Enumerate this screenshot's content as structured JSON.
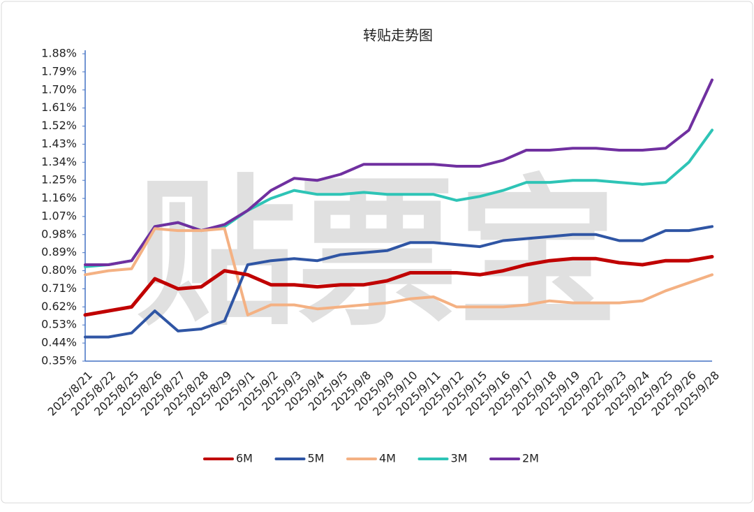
{
  "chart_data": {
    "type": "line",
    "title": "转贴走势图",
    "watermark": "贴票宝",
    "categories": [
      "2025/8/21",
      "2025/8/22",
      "2025/8/25",
      "2025/8/26",
      "2025/8/27",
      "2025/8/28",
      "2025/8/29",
      "2025/9/1",
      "2025/9/2",
      "2025/9/3",
      "2025/9/4",
      "2025/9/5",
      "2025/9/8",
      "2025/9/9",
      "2025/9/10",
      "2025/9/11",
      "2025/9/12",
      "2025/9/15",
      "2025/9/16",
      "2025/9/17",
      "2025/9/18",
      "2025/9/19",
      "2025/9/22",
      "2025/9/23",
      "2025/9/24",
      "2025/9/25",
      "2025/9/26",
      "2025/9/28"
    ],
    "series": [
      {
        "name": "6M",
        "color": "#c00000",
        "values": [
          0.58,
          0.6,
          0.62,
          0.76,
          0.71,
          0.72,
          0.8,
          0.78,
          0.73,
          0.73,
          0.72,
          0.73,
          0.73,
          0.75,
          0.79,
          0.79,
          0.79,
          0.78,
          0.8,
          0.83,
          0.85,
          0.86,
          0.86,
          0.84,
          0.83,
          0.85,
          0.85,
          0.87
        ]
      },
      {
        "name": "5M",
        "color": "#2f55a4",
        "values": [
          0.47,
          0.47,
          0.49,
          0.6,
          0.5,
          0.51,
          0.55,
          0.83,
          0.85,
          0.86,
          0.85,
          0.88,
          0.89,
          0.9,
          0.94,
          0.94,
          0.93,
          0.92,
          0.95,
          0.96,
          0.97,
          0.98,
          0.98,
          0.95,
          0.95,
          1.0,
          1.0,
          1.02
        ]
      },
      {
        "name": "4M",
        "color": "#f4b183",
        "values": [
          0.78,
          0.8,
          0.81,
          1.01,
          1.0,
          1.0,
          1.01,
          0.58,
          0.63,
          0.63,
          0.61,
          0.62,
          0.63,
          0.64,
          0.66,
          0.67,
          0.62,
          0.62,
          0.62,
          0.63,
          0.65,
          0.64,
          0.64,
          0.64,
          0.65,
          0.7,
          0.74,
          0.78
        ]
      },
      {
        "name": "3M",
        "color": "#2ec4b6",
        "values": [
          0.82,
          0.83,
          0.85,
          1.02,
          1.04,
          1.0,
          1.02,
          1.1,
          1.16,
          1.2,
          1.18,
          1.18,
          1.19,
          1.18,
          1.18,
          1.18,
          1.15,
          1.17,
          1.2,
          1.24,
          1.24,
          1.25,
          1.25,
          1.24,
          1.23,
          1.24,
          1.34,
          1.5
        ]
      },
      {
        "name": "2M",
        "color": "#7030a0",
        "values": [
          0.83,
          0.83,
          0.85,
          1.02,
          1.04,
          1.0,
          1.03,
          1.1,
          1.2,
          1.26,
          1.25,
          1.28,
          1.33,
          1.33,
          1.33,
          1.33,
          1.32,
          1.32,
          1.35,
          1.4,
          1.4,
          1.41,
          1.41,
          1.4,
          1.4,
          1.41,
          1.5,
          1.75
        ]
      }
    ],
    "ylim": [
      0.35,
      1.88
    ],
    "yticks": [
      {
        "value": 0.35,
        "label": "0.35%"
      },
      {
        "value": 0.44,
        "label": "0.44%"
      },
      {
        "value": 0.53,
        "label": "0.53%"
      },
      {
        "value": 0.62,
        "label": "0.62%"
      },
      {
        "value": 0.71,
        "label": "0.71%"
      },
      {
        "value": 0.8,
        "label": "0.80%"
      },
      {
        "value": 0.89,
        "label": "0.89%"
      },
      {
        "value": 0.98,
        "label": "0.98%"
      },
      {
        "value": 1.07,
        "label": "1.07%"
      },
      {
        "value": 1.16,
        "label": "1.16%"
      },
      {
        "value": 1.25,
        "label": "1.25%"
      },
      {
        "value": 1.34,
        "label": "1.34%"
      },
      {
        "value": 1.43,
        "label": "1.43%"
      },
      {
        "value": 1.52,
        "label": "1.52%"
      },
      {
        "value": 1.61,
        "label": "1.61%"
      },
      {
        "value": 1.7,
        "label": "1.70%"
      },
      {
        "value": 1.79,
        "label": "1.79%"
      },
      {
        "value": 1.88,
        "label": "1.88%"
      }
    ],
    "grid": false,
    "legend": "bottom"
  }
}
